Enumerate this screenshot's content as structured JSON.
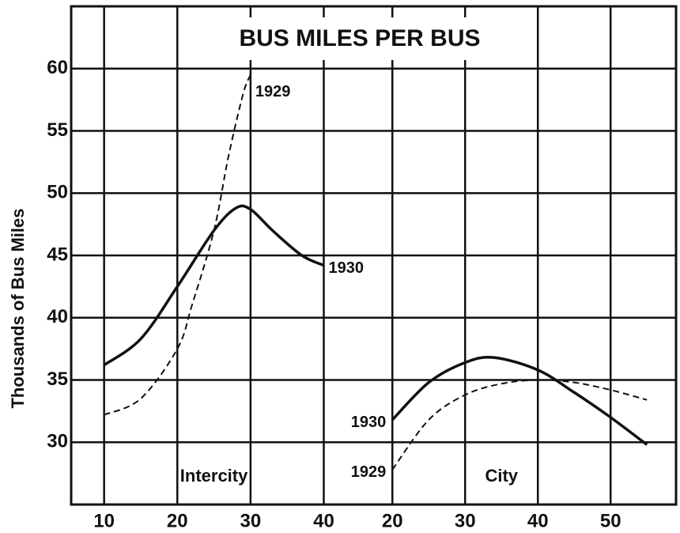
{
  "chart_data": {
    "type": "line",
    "title": "BUS MILES PER BUS",
    "ylabel": "Thousands of Bus Miles",
    "ylim": [
      25,
      65
    ],
    "yticks": [
      30,
      35,
      40,
      45,
      50,
      55,
      60
    ],
    "grid": true,
    "color": "#111111",
    "panels": [
      {
        "label": "Intercity",
        "xlim": [
          5.5,
          44.7
        ],
        "xticks": [
          10,
          20,
          30,
          40
        ],
        "series": [
          {
            "name": "1930",
            "style": "solid",
            "x": [
              10,
              15,
              20,
              25,
              28,
              30,
              33,
              37,
              40
            ],
            "values": [
              36.2,
              38.3,
              42.5,
              47,
              48.8,
              48.7,
              47,
              45,
              44.2
            ]
          },
          {
            "name": "1929",
            "style": "dashed",
            "x": [
              10,
              15,
              20,
              22,
              25,
              27,
              29,
              30
            ],
            "values": [
              32.2,
              33.5,
              37.5,
              41,
              47,
              53,
              58,
              59.5
            ]
          }
        ]
      },
      {
        "label": "City",
        "xlim": [
          15.3,
          59
        ],
        "xticks": [
          20,
          30,
          40,
          50
        ],
        "series": [
          {
            "name": "1930",
            "style": "solid",
            "x": [
              20,
              25,
              30,
              34,
              40,
              45,
              50,
              55
            ],
            "values": [
              31.8,
              34.8,
              36.4,
              36.8,
              35.8,
              34,
              32,
              29.8
            ]
          },
          {
            "name": "1929",
            "style": "dashed",
            "x": [
              20,
              25,
              30,
              35,
              40,
              45,
              50,
              55
            ],
            "values": [
              27.8,
              31.8,
              33.8,
              34.7,
              35,
              34.8,
              34.2,
              33.4
            ]
          }
        ]
      }
    ]
  }
}
